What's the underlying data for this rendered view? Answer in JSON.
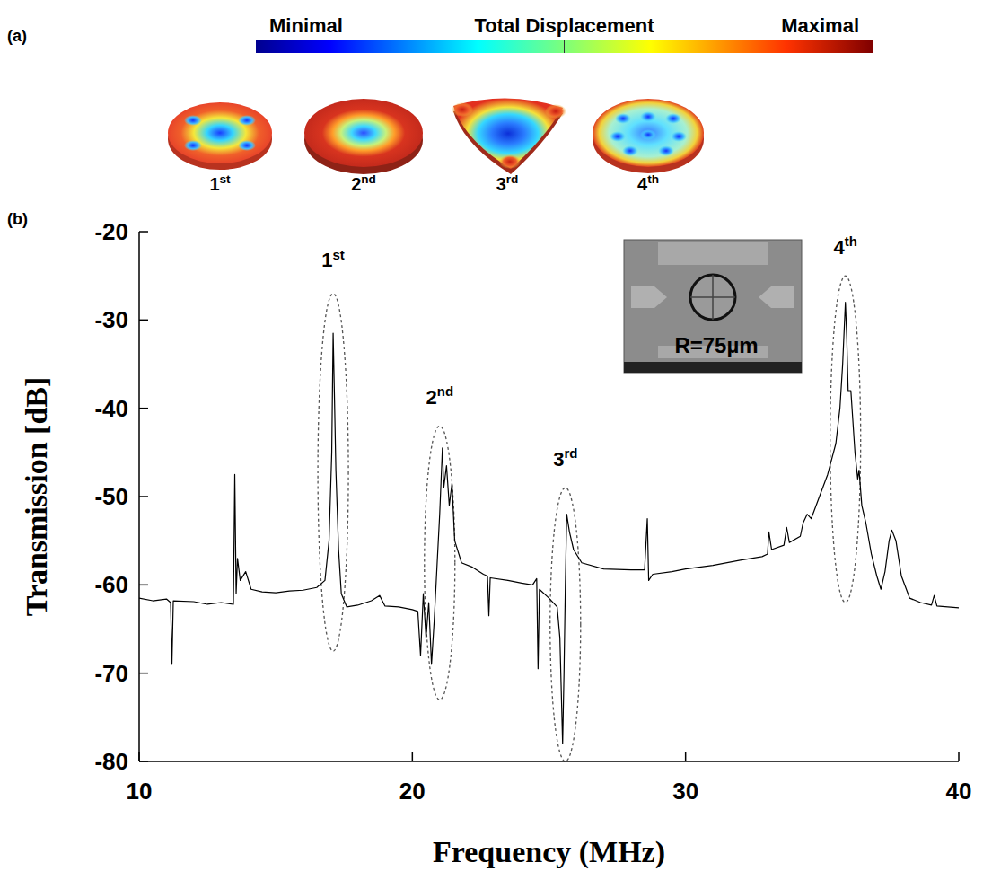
{
  "chart_data": {
    "type": "line",
    "panel_labels": [
      "(a)",
      "(b)"
    ],
    "colorbar_labels": [
      "Minimal",
      "Total Displacement",
      "Maximal"
    ],
    "mode_labels": [
      "1st",
      "2nd",
      "3rd",
      "4th"
    ],
    "inset_label": "R=75µm",
    "x_label": "Frequency (MHz)",
    "y_label": "Transmission [dB]",
    "color": "#000000",
    "grid": false,
    "xlim": [
      10,
      40
    ],
    "xticks": [
      10,
      20,
      30,
      40
    ],
    "ylim": [
      -80,
      -20
    ],
    "yticks": [
      -80,
      -70,
      -60,
      -50,
      -40,
      -30,
      -20
    ],
    "x": [
      10,
      10.5,
      11,
      11.15,
      11.2,
      11.25,
      12,
      12.5,
      13,
      13.45,
      13.5,
      13.55,
      13.6,
      13.7,
      13.9,
      14.1,
      14.5,
      15,
      15.5,
      16,
      16.5,
      16.8,
      16.95,
      17.05,
      17.1,
      17.15,
      17.2,
      17.3,
      17.4,
      17.6,
      18,
      18.5,
      18.8,
      19,
      19.5,
      20,
      20.2,
      20.3,
      20.4,
      20.5,
      20.6,
      20.7,
      20.8,
      20.9,
      21,
      21.1,
      21.15,
      21.25,
      21.35,
      21.45,
      21.55,
      21.8,
      22.2,
      22.6,
      22.75,
      22.8,
      22.85,
      23.5,
      24,
      24.4,
      24.55,
      24.6,
      24.65,
      25,
      25.3,
      25.4,
      25.5,
      25.55,
      25.6,
      25.65,
      25.75,
      25.9,
      26.2,
      27,
      28,
      28.5,
      28.6,
      28.65,
      28.8,
      29.5,
      30,
      31,
      32,
      32.8,
      33,
      33.05,
      33.15,
      33.6,
      33.7,
      33.8,
      34.2,
      34.3,
      34.45,
      34.6,
      34.9,
      35.2,
      35.5,
      35.65,
      35.75,
      35.85,
      35.9,
      35.95,
      36.05,
      36.2,
      36.3,
      36.35,
      36.45,
      36.6,
      36.8,
      37,
      37.15,
      37.3,
      37.45,
      37.55,
      37.7,
      37.9,
      38.2,
      38.6,
      39,
      39.1,
      39.2,
      39.6,
      40
    ],
    "values": [
      -61.5,
      -61.8,
      -61.6,
      -62,
      -69,
      -61.8,
      -61.9,
      -62.2,
      -62,
      -62.2,
      -47.5,
      -61,
      -57,
      -59.5,
      -58.5,
      -60.5,
      -60.8,
      -60.9,
      -60.7,
      -60.6,
      -60.3,
      -59.5,
      -55,
      -45,
      -31.5,
      -39,
      -47,
      -56,
      -61,
      -62.5,
      -62.3,
      -61.8,
      -61.2,
      -62.4,
      -62.5,
      -62.8,
      -63,
      -68,
      -61,
      -66,
      -62,
      -69,
      -64,
      -58,
      -52,
      -44.5,
      -49,
      -46.5,
      -51,
      -48.5,
      -55,
      -57.5,
      -58,
      -58.8,
      -59,
      -63.5,
      -59.2,
      -59.5,
      -59.8,
      -60,
      -59.3,
      -69.5,
      -60.5,
      -61.5,
      -62.5,
      -66,
      -78,
      -70,
      -60,
      -52,
      -54,
      -56,
      -57.5,
      -58.2,
      -58.3,
      -58.3,
      -52.5,
      -59.5,
      -58.8,
      -58.5,
      -58.2,
      -57.8,
      -57.2,
      -56.8,
      -56.5,
      -54,
      -56,
      -55.5,
      -53.5,
      -55.2,
      -54.5,
      -53,
      -52,
      -52.5,
      -50,
      -47.5,
      -44,
      -40,
      -35,
      -28,
      -32,
      -38,
      -38,
      -45,
      -48,
      -47,
      -51,
      -53,
      -56.5,
      -59,
      -60.5,
      -58.5,
      -55,
      -53.8,
      -55,
      -59,
      -61.5,
      -62,
      -62.3,
      -61.2,
      -62.4,
      -62.5,
      -62.6
    ],
    "annotations": [
      {
        "text": "1st",
        "x": 17.1,
        "y": -24,
        "range": [
          -67.5,
          -27
        ]
      },
      {
        "text": "2nd",
        "x": 21.0,
        "y": -39.5,
        "range": [
          -73,
          -42
        ]
      },
      {
        "text": "3rd",
        "x": 25.6,
        "y": -46.5,
        "range": [
          -80,
          -49
        ]
      },
      {
        "text": "4th",
        "x": 35.85,
        "y": -22.5,
        "range": [
          -62,
          -25
        ]
      }
    ]
  }
}
